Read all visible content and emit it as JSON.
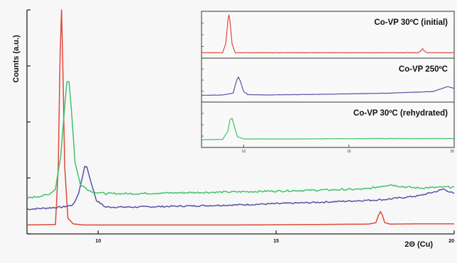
{
  "chart_data": [
    {
      "type": "line",
      "title": "",
      "xlabel": "2Θ (Cu)",
      "ylabel": "Counts (a.u.)",
      "xlim": [
        8,
        20
      ],
      "ylim": [
        0,
        100
      ],
      "x_ticks": [
        10,
        15,
        20
      ],
      "x_tick_labels": [
        "10",
        "15",
        "20"
      ],
      "y_ticks": [
        0,
        25,
        50,
        75,
        100
      ],
      "grid": false,
      "series": [
        {
          "color": "#e0483a",
          "x": [
            8.0,
            8.8,
            8.88,
            8.93,
            8.97,
            9.0,
            9.06,
            9.15,
            9.3,
            9.6,
            10.0,
            12.0,
            14.0,
            16.0,
            17.6,
            17.8,
            17.88,
            17.93,
            17.98,
            18.05,
            18.2,
            19.0,
            20.0
          ],
          "y": [
            4.0,
            4.2,
            30.0,
            80.0,
            100.0,
            80.0,
            30.0,
            7.0,
            4.5,
            4.0,
            4.0,
            4.0,
            4.0,
            4.2,
            4.4,
            5.0,
            8.5,
            10.0,
            8.5,
            5.0,
            4.4,
            4.5,
            4.5
          ]
        },
        {
          "color": "#5b4fa6",
          "x": [
            8.0,
            9.0,
            9.3,
            9.45,
            9.55,
            9.62,
            9.68,
            9.8,
            9.95,
            10.2,
            11.0,
            12.0,
            14.0,
            16.0,
            18.0,
            19.0,
            19.5,
            19.7,
            19.85,
            20.0
          ],
          "y": [
            11.0,
            12.0,
            13.0,
            18.0,
            25.0,
            30.0,
            30.0,
            23.0,
            15.0,
            12.0,
            12.0,
            12.3,
            13.0,
            14.0,
            15.3,
            17.0,
            19.0,
            20.0,
            19.0,
            18.0
          ],
          "noise": 0.7
        },
        {
          "color": "#3fc36a",
          "x": [
            8.0,
            8.6,
            8.8,
            8.95,
            9.05,
            9.12,
            9.18,
            9.25,
            9.35,
            9.5,
            9.8,
            10.2,
            11.0,
            12.0,
            14.0,
            16.0,
            17.5,
            18.2,
            18.6,
            19.0,
            20.0
          ],
          "y": [
            16.0,
            17.5,
            20.0,
            35.0,
            55.0,
            68.0,
            68.0,
            55.0,
            32.0,
            22.0,
            19.0,
            18.0,
            18.0,
            18.3,
            18.8,
            19.5,
            20.0,
            22.0,
            21.0,
            20.5,
            21.0
          ],
          "noise": 0.8
        }
      ]
    },
    {
      "type": "line",
      "title": "",
      "xlim": [
        8,
        20
      ],
      "x_ticks": [
        10,
        15,
        20
      ],
      "x_tick_labels": [
        "10",
        "15",
        "20"
      ],
      "panels": [
        {
          "name": "Co-VP 30ºC (initial)",
          "color": "#e0483a",
          "x": [
            8.0,
            9.0,
            9.15,
            9.25,
            9.3,
            9.35,
            9.45,
            9.6,
            12.0,
            16.0,
            18.3,
            18.45,
            18.5,
            18.55,
            18.7,
            20.0
          ],
          "y": [
            8,
            8,
            30,
            85,
            100,
            85,
            30,
            8,
            8,
            8,
            8,
            14,
            18,
            14,
            8,
            8
          ]
        },
        {
          "name": "Co-VP 250ºC",
          "color": "#5b4fa6",
          "x": [
            8.0,
            9.0,
            9.5,
            9.65,
            9.75,
            9.85,
            10.0,
            10.2,
            11.0,
            14.0,
            17.0,
            19.0,
            19.7,
            20.0
          ],
          "y": [
            12,
            13,
            18,
            48,
            60,
            48,
            22,
            14,
            13,
            15,
            18,
            22,
            35,
            30
          ]
        },
        {
          "name": "Co-VP 30ºC (rehydrated)",
          "color": "#3fc36a",
          "x": [
            8.0,
            9.0,
            9.25,
            9.35,
            9.45,
            9.55,
            9.7,
            10.0,
            12.0,
            16.0,
            20.0
          ],
          "y": [
            14,
            15,
            35,
            65,
            68,
            50,
            22,
            16,
            16,
            17,
            17
          ]
        }
      ]
    }
  ]
}
